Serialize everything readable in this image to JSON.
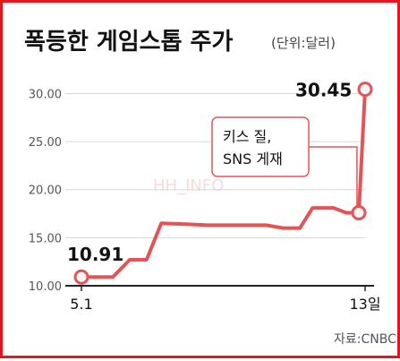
{
  "colors": {
    "frame": "#e8141b",
    "line": "#e25556",
    "marker_fill": "#f4f4f4",
    "callout_border": "#e25556",
    "grid": "#d7d7d7",
    "axis": "#222222",
    "text": "#111111",
    "subtext": "#555555"
  },
  "chart_data": {
    "type": "line",
    "title": "폭등한 게임스톱 주가",
    "unit": "(단위:달러)",
    "source": "자료:CNBC",
    "watermark": "HH_INFO",
    "x_labels": [
      {
        "label": "5.1",
        "index": 0
      },
      {
        "label": "13일",
        "index": 12
      }
    ],
    "ylim": [
      10,
      32
    ],
    "yticks": [
      10,
      15,
      20,
      25,
      30
    ],
    "ytick_labels": [
      "10.00",
      "15.00",
      "20.00",
      "25.00",
      "30.00"
    ],
    "grid": true,
    "series": [
      {
        "values": [
          10.91,
          10.91,
          10.91,
          12.7,
          12.7,
          16.5,
          16.4,
          16.3,
          16.3,
          16.3,
          16.3,
          16.0,
          16.0,
          18.1,
          18.1,
          17.6,
          17.6,
          30.45
        ],
        "x": [
          0,
          0.6,
          1.5,
          2.3,
          3.1,
          3.8,
          5.0,
          6.0,
          7.0,
          8.0,
          8.8,
          9.6,
          10.4,
          11.0,
          12.0,
          12.6,
          13.2,
          13.5
        ]
      }
    ],
    "annotations": [
      {
        "label": "10.91",
        "index": 0,
        "value": 10.91
      },
      {
        "label": "30.45",
        "index": 17,
        "value": 30.45
      },
      {
        "label": "키스 질,",
        "label2": "SNS 게재",
        "index": 16,
        "value": 17.6
      }
    ]
  }
}
